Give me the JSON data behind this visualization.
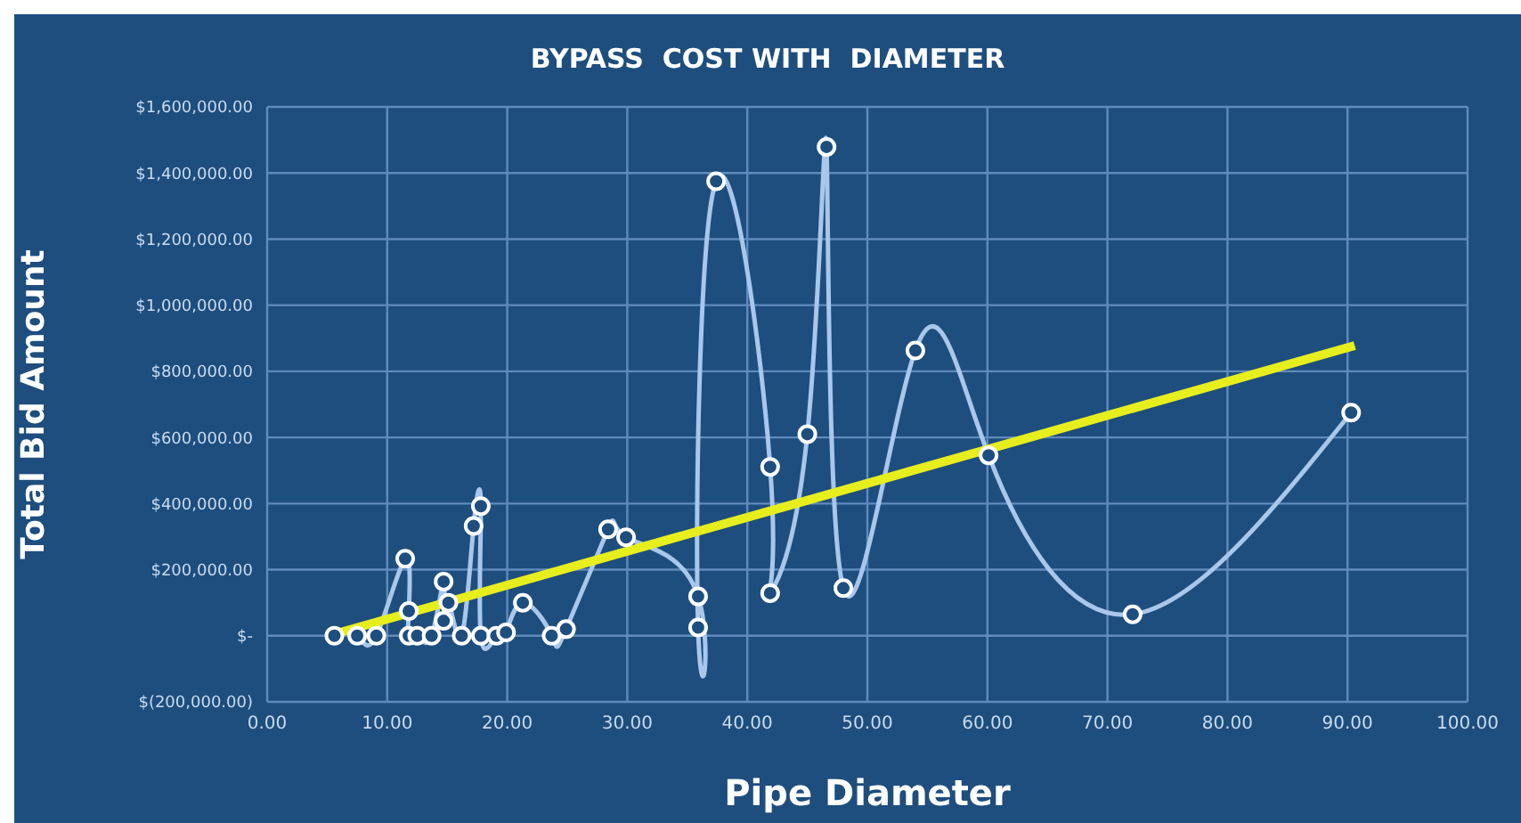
{
  "chart_data": {
    "type": "line",
    "title": "BYPASS  COST WITH  DIAMETER",
    "xlabel": "Pipe Diameter",
    "ylabel": "Total Bid Amount",
    "xlim": [
      0,
      100
    ],
    "xticks": [
      {
        "value": 0,
        "label": "0.00"
      },
      {
        "value": 10,
        "label": "10.00"
      },
      {
        "value": 20,
        "label": "20.00"
      },
      {
        "value": 30,
        "label": "30.00"
      },
      {
        "value": 40,
        "label": "40.00"
      },
      {
        "value": 50,
        "label": "50.00"
      },
      {
        "value": 60,
        "label": "60.00"
      },
      {
        "value": 70,
        "label": "70.00"
      },
      {
        "value": 80,
        "label": "80.00"
      },
      {
        "value": 90,
        "label": "90.00"
      },
      {
        "value": 100,
        "label": "100.00"
      }
    ],
    "ylim": [
      -200000,
      1600000
    ],
    "yticks": [
      {
        "value": -200000,
        "label": "$(200,000.00)"
      },
      {
        "value": 0,
        "label": "$-"
      },
      {
        "value": 200000,
        "label": "$200,000.00"
      },
      {
        "value": 400000,
        "label": "$400,000.00"
      },
      {
        "value": 600000,
        "label": "$600,000.00"
      },
      {
        "value": 800000,
        "label": "$800,000.00"
      },
      {
        "value": 1000000,
        "label": "$1,000,000.00"
      },
      {
        "value": 1200000,
        "label": "$1,200,000.00"
      },
      {
        "value": 1400000,
        "label": "$1,400,000.00"
      },
      {
        "value": 1600000,
        "label": "$1,600,000.00"
      }
    ],
    "grid": true,
    "series": [
      {
        "color": "#a9c7ea",
        "marker": "circle",
        "x": [
          5.6,
          7.5,
          9.1,
          11.5,
          11.8,
          11.8,
          12.5,
          13.7,
          14.7,
          14.7,
          15.1,
          16.2,
          17.2,
          17.8,
          17.8,
          19.1,
          19.9,
          21.3,
          23.7,
          24.9,
          28.4,
          29.9,
          35.9,
          35.9,
          37.4,
          41.9,
          41.9,
          45,
          46.6,
          48,
          54,
          60.1,
          72.1,
          90.3
        ],
        "values": [
          0,
          0,
          0,
          233000,
          75000,
          0,
          0,
          0,
          164000,
          45000,
          100000,
          0,
          332000,
          392000,
          0,
          0,
          10000,
          100000,
          0,
          20000,
          322000,
          298000,
          119000,
          25000,
          1375000,
          511000,
          129000,
          610000,
          1479000,
          144000,
          863000,
          546000,
          65000,
          675000
        ]
      },
      {
        "color": "#e6ee1e",
        "marker": "none",
        "x": [
          5.1,
          90.6
        ],
        "values": [
          0,
          878000
        ]
      }
    ]
  }
}
